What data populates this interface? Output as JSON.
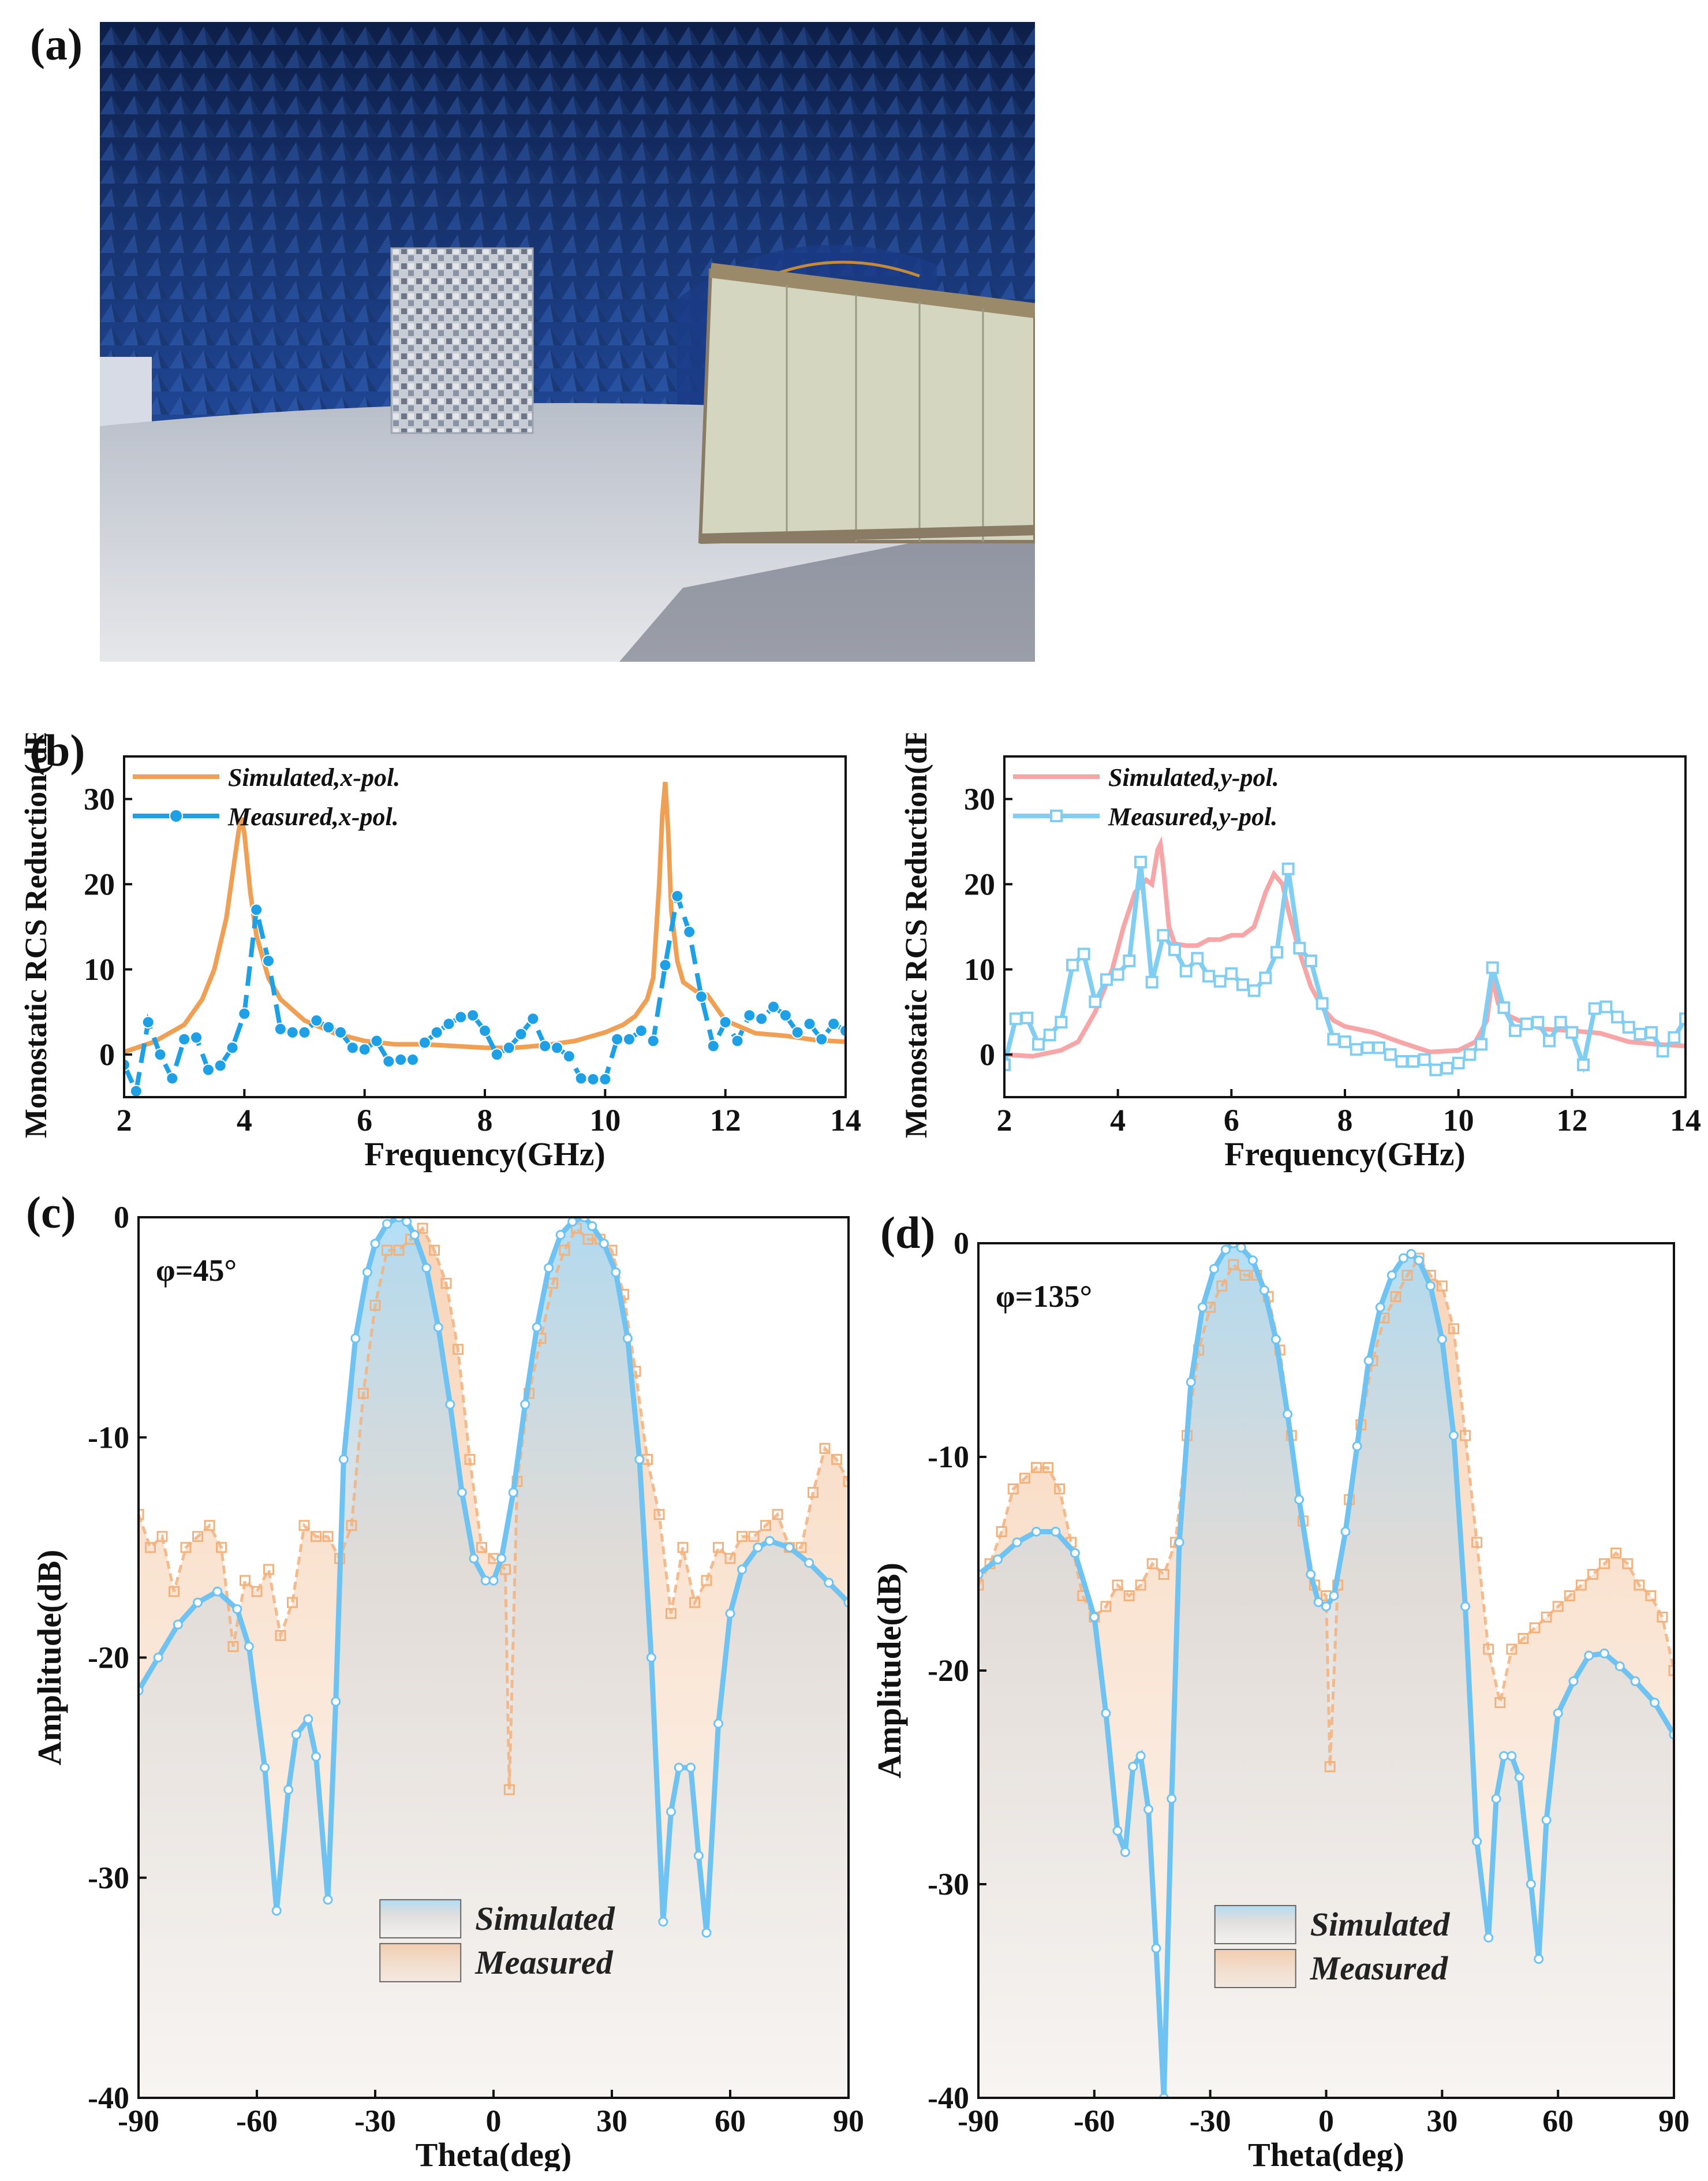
{
  "panels": {
    "a": "(a)",
    "b": "(b)",
    "c": "(c)",
    "d": "(d)"
  },
  "photo": {
    "subject": "anechoic chamber measurement setup",
    "colors": {
      "wall": "#1d3f86",
      "floor": "#c9ccd3",
      "board": "#d7d8c4",
      "sample": "#9aa6b8"
    }
  },
  "chart_data": [
    {
      "id": "b1",
      "type": "line",
      "xlabel": "Frequency(GHz)",
      "ylabel": "Monostatic RCS Reduction(dB)",
      "xlim": [
        2,
        14
      ],
      "ylim": [
        -5,
        35
      ],
      "xticks": [
        2,
        4,
        6,
        8,
        10,
        12,
        14
      ],
      "yticks": [
        0,
        10,
        20,
        30
      ],
      "legend_position": "top-left",
      "series": [
        {
          "name": "Simulated,x-pol.",
          "color": "#f0a055",
          "x": [
            2,
            2.5,
            3,
            3.3,
            3.5,
            3.7,
            3.8,
            3.9,
            3.95,
            4.0,
            4.1,
            4.2,
            4.4,
            4.6,
            5,
            5.5,
            6,
            6.5,
            7,
            7.5,
            8,
            8.5,
            9,
            9.5,
            10,
            10.3,
            10.5,
            10.7,
            10.8,
            10.9,
            10.95,
            11.0,
            11.05,
            11.1,
            11.2,
            11.3,
            11.5,
            11.7,
            12,
            12.5,
            13,
            13.5,
            14
          ],
          "y": [
            0.3,
            1.5,
            3.5,
            6.5,
            10,
            16,
            21,
            26,
            27.8,
            26,
            19,
            14,
            9,
            6.5,
            4,
            2.5,
            1.6,
            1.2,
            1.2,
            1.0,
            0.8,
            0.8,
            1.1,
            1.6,
            2.6,
            3.5,
            4.5,
            6.5,
            9,
            20,
            28,
            32,
            26,
            17,
            11,
            8.5,
            7.5,
            7,
            4,
            2.5,
            2.2,
            1.7,
            1.5
          ]
        },
        {
          "name": "Measured,x-pol.",
          "color": "#1ea0e6",
          "marker": "circle",
          "x": [
            2.0,
            2.2,
            2.4,
            2.6,
            2.8,
            3.0,
            3.2,
            3.4,
            3.6,
            3.8,
            4.0,
            4.2,
            4.4,
            4.6,
            4.8,
            5.0,
            5.2,
            5.4,
            5.6,
            5.8,
            6.0,
            6.2,
            6.4,
            6.6,
            6.8,
            7.0,
            7.2,
            7.4,
            7.6,
            7.8,
            8.0,
            8.2,
            8.4,
            8.6,
            8.8,
            9.0,
            9.2,
            9.4,
            9.6,
            9.8,
            10.0,
            10.2,
            10.4,
            10.6,
            10.8,
            11.0,
            11.2,
            11.4,
            11.6,
            11.8,
            12.0,
            12.2,
            12.4,
            12.6,
            12.8,
            13.0,
            13.2,
            13.4,
            13.6,
            13.8,
            14.0
          ],
          "y": [
            -1.2,
            -4.3,
            3.8,
            0.0,
            -2.8,
            1.8,
            2.0,
            -1.8,
            -1.3,
            0.8,
            4.8,
            17.0,
            11.0,
            3.0,
            2.6,
            2.6,
            4.0,
            3.2,
            2.6,
            0.8,
            0.6,
            1.6,
            -0.8,
            -0.6,
            -0.6,
            1.4,
            2.6,
            3.6,
            4.4,
            4.6,
            2.8,
            0.0,
            0.8,
            2.4,
            4.2,
            1.0,
            0.8,
            -0.2,
            -2.8,
            -2.9,
            -2.9,
            1.8,
            1.8,
            2.8,
            1.6,
            10.5,
            18.6,
            14.4,
            6.8,
            1.0,
            3.8,
            1.6,
            4.6,
            4.2,
            5.6,
            4.6,
            2.6,
            3.6,
            1.8,
            3.6,
            2.8
          ]
        }
      ]
    },
    {
      "id": "b2",
      "type": "line",
      "xlabel": "Frequency(GHz)",
      "ylabel": "Monostatic RCS Reduction(dB)",
      "xlim": [
        2,
        14
      ],
      "ylim": [
        -5,
        35
      ],
      "xticks": [
        2,
        4,
        6,
        8,
        10,
        12,
        14
      ],
      "yticks": [
        0,
        10,
        20,
        30
      ],
      "legend_position": "top-left",
      "series": [
        {
          "name": "Simulated,y-pol.",
          "color": "#f7a6a8",
          "x": [
            2,
            2.5,
            3,
            3.3,
            3.6,
            3.9,
            4.1,
            4.3,
            4.5,
            4.6,
            4.7,
            4.75,
            4.8,
            4.9,
            5.0,
            5.2,
            5.4,
            5.6,
            5.8,
            6.0,
            6.2,
            6.4,
            6.6,
            6.75,
            6.9,
            7.0,
            7.2,
            7.4,
            7.6,
            7.8,
            8.0,
            8.5,
            9.0,
            9.5,
            10,
            10.3,
            10.5,
            10.6,
            10.7,
            10.9,
            11.2,
            11.5,
            12,
            12.5,
            13,
            13.5,
            14
          ],
          "y": [
            0,
            -0.2,
            0.5,
            1.5,
            5,
            10,
            15,
            19,
            20.5,
            20,
            24,
            24.7,
            22,
            15,
            13,
            12.8,
            12.8,
            13.5,
            13.5,
            14,
            14,
            15,
            19,
            21.2,
            20,
            17,
            12,
            8,
            5.5,
            4,
            3.3,
            2.6,
            1.4,
            0.3,
            0.5,
            1.5,
            4,
            9,
            6,
            4.5,
            3.6,
            3.0,
            2.8,
            2.5,
            1.5,
            1.2,
            1.0
          ]
        },
        {
          "name": "Measured,y-pol.",
          "color": "#82cdf2",
          "marker": "square",
          "x": [
            2.0,
            2.2,
            2.4,
            2.6,
            2.8,
            3.0,
            3.2,
            3.4,
            3.6,
            3.8,
            4.0,
            4.2,
            4.4,
            4.6,
            4.8,
            5.0,
            5.2,
            5.4,
            5.6,
            5.8,
            6.0,
            6.2,
            6.4,
            6.6,
            6.8,
            7.0,
            7.2,
            7.4,
            7.6,
            7.8,
            8.0,
            8.2,
            8.4,
            8.6,
            8.8,
            9.0,
            9.2,
            9.4,
            9.6,
            9.8,
            10.0,
            10.2,
            10.4,
            10.6,
            10.8,
            11.0,
            11.2,
            11.4,
            11.6,
            11.8,
            12.0,
            12.2,
            12.4,
            12.6,
            12.8,
            13.0,
            13.2,
            13.4,
            13.6,
            13.8,
            14.0
          ],
          "y": [
            -1.2,
            4.2,
            4.3,
            1.2,
            2.3,
            3.8,
            10.5,
            11.8,
            6.2,
            8.8,
            9.4,
            11.0,
            22.6,
            8.5,
            14.0,
            12.3,
            9.8,
            11.3,
            9.2,
            8.6,
            9.5,
            8.2,
            7.5,
            9.0,
            12.0,
            21.8,
            12.5,
            11.0,
            6.0,
            1.8,
            1.5,
            0.6,
            0.8,
            0.8,
            0.0,
            -0.8,
            -0.8,
            -0.6,
            -1.8,
            -1.6,
            -1.0,
            0.0,
            1.2,
            10.2,
            5.5,
            2.8,
            3.6,
            3.8,
            1.6,
            3.8,
            2.6,
            -1.2,
            5.4,
            5.6,
            4.4,
            3.2,
            2.4,
            2.6,
            0.4,
            2.0,
            4.2
          ]
        }
      ]
    },
    {
      "id": "c",
      "type": "area",
      "annotation": "φ=45°",
      "xlabel": "Theta(deg)",
      "ylabel": "Amplitude(dB)",
      "xlim": [
        -90,
        90
      ],
      "ylim": [
        -40,
        0
      ],
      "xticks": [
        -90,
        -60,
        -30,
        0,
        30,
        60,
        90
      ],
      "yticks": [
        0,
        -10,
        -20,
        -30,
        -40
      ],
      "legend_position": "bottom-center",
      "series": [
        {
          "name": "Simulated",
          "color": "#6ec3f2",
          "x": [
            -90,
            -85,
            -80,
            -75,
            -70,
            -65,
            -62,
            -58,
            -55,
            -52,
            -50,
            -47,
            -45,
            -42,
            -40,
            -38,
            -35,
            -32,
            -30,
            -27,
            -24,
            -22,
            -20,
            -17,
            -14,
            -11,
            -8,
            -5,
            -2,
            0,
            2,
            5,
            8,
            11,
            14,
            17,
            20,
            23,
            25,
            28,
            31,
            34,
            37,
            40,
            43,
            45,
            47,
            50,
            52,
            54,
            57,
            60,
            63,
            67,
            70,
            75,
            80,
            85,
            90
          ],
          "y": [
            -21.5,
            -20,
            -18.5,
            -17.5,
            -17,
            -17.8,
            -19.5,
            -25,
            -31.5,
            -26,
            -23.5,
            -22.8,
            -24.5,
            -31,
            -22,
            -11,
            -5.5,
            -2.5,
            -1.2,
            -0.3,
            0,
            -0.2,
            -0.8,
            -2.3,
            -5,
            -8.5,
            -12.5,
            -15.5,
            -16.5,
            -16.5,
            -15.5,
            -12.5,
            -8.5,
            -5,
            -2.3,
            -0.8,
            -0.2,
            0,
            -0.4,
            -1.2,
            -2.5,
            -5.5,
            -11,
            -20,
            -32,
            -27,
            -25,
            -25,
            -29,
            -32.5,
            -23,
            -18,
            -16,
            -15,
            -14.7,
            -15,
            -15.7,
            -16.6,
            -17.5
          ]
        },
        {
          "name": "Measured",
          "color": "#f2b27e",
          "marker": "square",
          "x": [
            -90,
            -87,
            -84,
            -81,
            -78,
            -75,
            -72,
            -69,
            -66,
            -63,
            -60,
            -57,
            -54,
            -51,
            -48,
            -45,
            -42,
            -39,
            -36,
            -33,
            -30,
            -27,
            -24,
            -21,
            -18,
            -15,
            -12,
            -9,
            -6,
            -3,
            0,
            3,
            4,
            6,
            9,
            12,
            15,
            18,
            21,
            24,
            27,
            30,
            33,
            36,
            39,
            42,
            45,
            48,
            51,
            54,
            57,
            60,
            63,
            66,
            69,
            72,
            75,
            78,
            81,
            84,
            87,
            90
          ],
          "y": [
            -13.5,
            -15,
            -14.5,
            -17,
            -15,
            -14.5,
            -14,
            -15,
            -19.5,
            -16.5,
            -17,
            -16,
            -19,
            -17.5,
            -14,
            -14.5,
            -14.5,
            -15.5,
            -14,
            -8,
            -4,
            -1.5,
            -1.5,
            -1,
            -0.5,
            -1.5,
            -3,
            -6,
            -11,
            -15,
            -15.5,
            -16,
            -26,
            -12,
            -8,
            -5.5,
            -3,
            -1.5,
            -0.5,
            -1,
            -1,
            -1.5,
            -3.5,
            -7,
            -11,
            -13.5,
            -18,
            -15,
            -17.5,
            -16.5,
            -15,
            -15.5,
            -14.5,
            -14.5,
            -14,
            -13.5,
            -15,
            -15,
            -12.5,
            -10.5,
            -11,
            -12
          ]
        }
      ]
    },
    {
      "id": "d",
      "type": "area",
      "annotation": "φ=135°",
      "xlabel": "Theta(deg)",
      "ylabel": "Amplitude(dB)",
      "xlim": [
        -90,
        90
      ],
      "ylim": [
        -40,
        0
      ],
      "xticks": [
        -90,
        -60,
        -30,
        0,
        30,
        60,
        90
      ],
      "yticks": [
        0,
        -10,
        -20,
        -30,
        -40
      ],
      "legend_position": "bottom-center",
      "series": [
        {
          "name": "Simulated",
          "color": "#6ec3f2",
          "x": [
            -90,
            -85,
            -80,
            -75,
            -70,
            -65,
            -60,
            -57,
            -54,
            -52,
            -50,
            -48,
            -46,
            -44,
            -42,
            -40,
            -38,
            -35,
            -32,
            -29,
            -26,
            -24,
            -22,
            -19,
            -16,
            -13,
            -10,
            -7,
            -4,
            -2,
            0,
            2,
            5,
            8,
            11,
            14,
            17,
            20,
            22,
            24,
            27,
            30,
            33,
            36,
            39,
            42,
            44,
            46,
            48,
            50,
            53,
            55,
            57,
            60,
            64,
            68,
            72,
            76,
            80,
            85,
            90
          ],
          "y": [
            -15.5,
            -14.8,
            -14,
            -13.5,
            -13.5,
            -14.5,
            -17.5,
            -22,
            -27.5,
            -28.5,
            -24.5,
            -24,
            -26.5,
            -33,
            -40,
            -26,
            -14,
            -6.5,
            -3,
            -1.2,
            -0.3,
            0,
            -0.2,
            -0.8,
            -2.2,
            -4.5,
            -8,
            -12,
            -15.5,
            -16.8,
            -17,
            -16.5,
            -13.5,
            -9.5,
            -5.5,
            -3,
            -1.5,
            -0.7,
            -0.5,
            -0.8,
            -2,
            -4.5,
            -9,
            -17,
            -28,
            -32.5,
            -26,
            -24,
            -24,
            -25,
            -30,
            -33.5,
            -27,
            -22,
            -20.5,
            -19.3,
            -19.2,
            -19.8,
            -20.5,
            -21.5,
            -23
          ]
        },
        {
          "name": "Measured",
          "color": "#f2b27e",
          "marker": "square",
          "x": [
            -90,
            -87,
            -84,
            -81,
            -78,
            -75,
            -72,
            -69,
            -66,
            -63,
            -60,
            -57,
            -54,
            -51,
            -48,
            -45,
            -42,
            -39,
            -36,
            -33,
            -30,
            -27,
            -24,
            -21,
            -18,
            -15,
            -12,
            -9,
            -6,
            -3,
            0,
            1,
            3,
            6,
            9,
            12,
            15,
            18,
            21,
            24,
            27,
            30,
            33,
            36,
            39,
            42,
            45,
            48,
            51,
            54,
            57,
            60,
            63,
            66,
            69,
            72,
            75,
            78,
            81,
            84,
            87,
            90
          ],
          "y": [
            -16,
            -15,
            -13.5,
            -11.5,
            -11,
            -10.5,
            -10.5,
            -11.5,
            -14,
            -16.5,
            -17.5,
            -17,
            -16,
            -16.5,
            -16,
            -15,
            -15.5,
            -14,
            -9,
            -5,
            -3,
            -2,
            -1,
            -1.5,
            -1.5,
            -2.5,
            -5,
            -9,
            -13,
            -16,
            -16.5,
            -24.5,
            -16,
            -12,
            -8.5,
            -5.5,
            -3.5,
            -2.5,
            -1.5,
            -0.7,
            -1.5,
            -2,
            -4,
            -9,
            -14,
            -19,
            -21.5,
            -19,
            -18.5,
            -18,
            -17.5,
            -17,
            -16.5,
            -16,
            -15.5,
            -15,
            -14.5,
            -15,
            -16,
            -16.5,
            -17.5,
            -20
          ]
        }
      ]
    }
  ]
}
